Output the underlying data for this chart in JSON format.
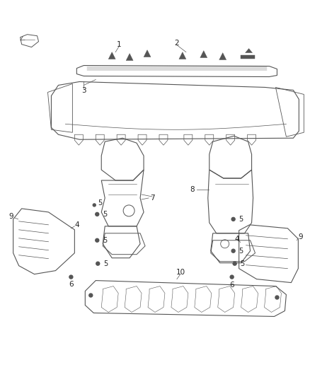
{
  "background_color": "#ffffff",
  "line_color": "#555555",
  "label_color": "#222222",
  "figsize": [
    4.38,
    5.33
  ],
  "dpi": 100,
  "lw": 0.8
}
